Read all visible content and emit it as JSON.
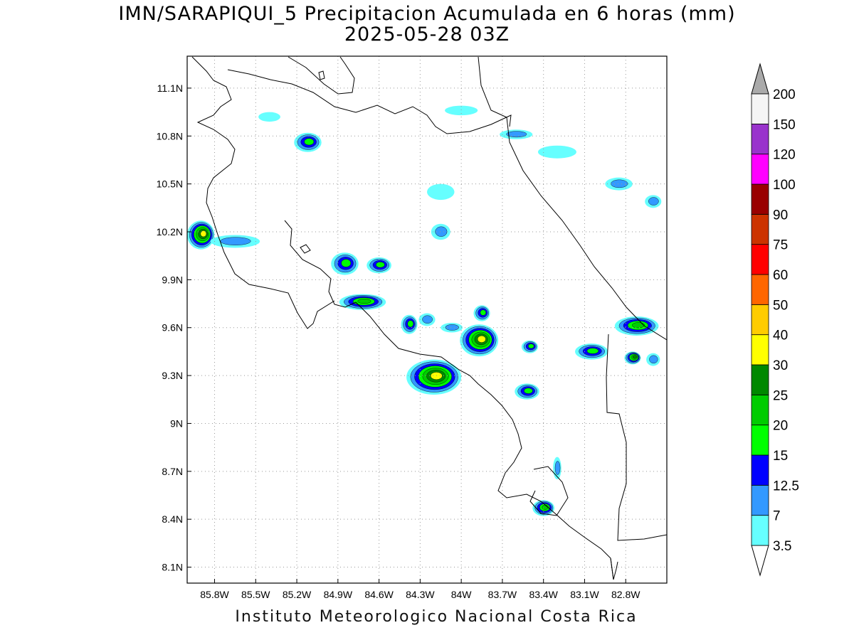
{
  "header": {
    "title": "IMN/SARAPIQUI_5 Precipitacion Acumulada en 6 horas (mm)",
    "subtitle": "2025-05-28 03Z"
  },
  "footer": {
    "credit": "Instituto Meteorologico Nacional Costa Rica"
  },
  "map": {
    "lon_range": [
      -86.0,
      -82.5
    ],
    "lat_range": [
      8.0,
      11.3
    ],
    "lon_ticks": [
      {
        "value": -85.8,
        "label": "85.8W"
      },
      {
        "value": -85.5,
        "label": "85.5W"
      },
      {
        "value": -85.2,
        "label": "85.2W"
      },
      {
        "value": -84.9,
        "label": "84.9W"
      },
      {
        "value": -84.6,
        "label": "84.6W"
      },
      {
        "value": -84.3,
        "label": "84.3W"
      },
      {
        "value": -84.0,
        "label": "84W"
      },
      {
        "value": -83.7,
        "label": "83.7W"
      },
      {
        "value": -83.4,
        "label": "83.4W"
      },
      {
        "value": -83.1,
        "label": "83.1W"
      },
      {
        "value": -82.8,
        "label": "82.8W"
      }
    ],
    "lat_ticks": [
      {
        "value": 11.1,
        "label": "11.1N"
      },
      {
        "value": 10.8,
        "label": "10.8N"
      },
      {
        "value": 10.5,
        "label": "10.5N"
      },
      {
        "value": 10.2,
        "label": "10.2N"
      },
      {
        "value": 9.9,
        "label": "9.9N"
      },
      {
        "value": 9.6,
        "label": "9.6N"
      },
      {
        "value": 9.3,
        "label": "9.3N"
      },
      {
        "value": 9.0,
        "label": "9N"
      },
      {
        "value": 8.7,
        "label": "8.7N"
      },
      {
        "value": 8.4,
        "label": "8.4N"
      },
      {
        "value": 8.1,
        "label": "8.1N"
      }
    ],
    "gridlines": "dotted"
  },
  "legend": {
    "levels": [
      {
        "label": "3.5",
        "color": "#66ffff"
      },
      {
        "label": "7",
        "color": "#3399ff"
      },
      {
        "label": "12.5",
        "color": "#0000ff"
      },
      {
        "label": "15",
        "color": "#00ff00"
      },
      {
        "label": "20",
        "color": "#00cc00"
      },
      {
        "label": "25",
        "color": "#008800"
      },
      {
        "label": "30",
        "color": "#ffff00"
      },
      {
        "label": "40",
        "color": "#ffcc00"
      },
      {
        "label": "50",
        "color": "#ff6600"
      },
      {
        "label": "60",
        "color": "#ff0000"
      },
      {
        "label": "75",
        "color": "#cc3300"
      },
      {
        "label": "90",
        "color": "#990000"
      },
      {
        "label": "100",
        "color": "#ff00ff"
      },
      {
        "label": "120",
        "color": "#9933cc"
      },
      {
        "label": "150",
        "color": "#f5f5f5"
      },
      {
        "label": "200",
        "color": "#aaaaaa"
      }
    ],
    "low_color": "#ffffff",
    "high_color": "#aaaaaa"
  },
  "rain_cells": [
    {
      "lon": -85.9,
      "lat": 10.18,
      "rx": 0.1,
      "ry": 0.09,
      "max_mm": 35
    },
    {
      "lon": -85.65,
      "lat": 10.14,
      "rx": 0.18,
      "ry": 0.04,
      "max_mm": 10
    },
    {
      "lon": -85.12,
      "lat": 10.76,
      "rx": 0.1,
      "ry": 0.06,
      "max_mm": 16
    },
    {
      "lon": -84.85,
      "lat": 10.0,
      "rx": 0.1,
      "ry": 0.07,
      "max_mm": 18
    },
    {
      "lon": -84.6,
      "lat": 9.99,
      "rx": 0.09,
      "ry": 0.05,
      "max_mm": 18
    },
    {
      "lon": -84.72,
      "lat": 9.76,
      "rx": 0.17,
      "ry": 0.05,
      "max_mm": 22
    },
    {
      "lon": -84.2,
      "lat": 9.29,
      "rx": 0.2,
      "ry": 0.11,
      "max_mm": 35
    },
    {
      "lon": -83.87,
      "lat": 9.52,
      "rx": 0.14,
      "ry": 0.1,
      "max_mm": 33
    },
    {
      "lon": -83.52,
      "lat": 9.2,
      "rx": 0.09,
      "ry": 0.05,
      "max_mm": 18
    },
    {
      "lon": -83.4,
      "lat": 8.47,
      "rx": 0.08,
      "ry": 0.05,
      "max_mm": 22
    },
    {
      "lon": -82.72,
      "lat": 9.61,
      "rx": 0.16,
      "ry": 0.06,
      "max_mm": 22
    },
    {
      "lon": -83.05,
      "lat": 9.45,
      "rx": 0.12,
      "ry": 0.05,
      "max_mm": 18
    },
    {
      "lon": -82.75,
      "lat": 9.41,
      "rx": 0.06,
      "ry": 0.04,
      "max_mm": 28
    },
    {
      "lon": -84.15,
      "lat": 10.2,
      "rx": 0.07,
      "ry": 0.05,
      "max_mm": 12
    },
    {
      "lon": -83.85,
      "lat": 9.69,
      "rx": 0.06,
      "ry": 0.05,
      "max_mm": 18
    },
    {
      "lon": -84.38,
      "lat": 9.62,
      "rx": 0.06,
      "ry": 0.06,
      "max_mm": 18
    },
    {
      "lon": -83.6,
      "lat": 10.81,
      "rx": 0.12,
      "ry": 0.03,
      "max_mm": 10
    },
    {
      "lon": -82.85,
      "lat": 10.5,
      "rx": 0.1,
      "ry": 0.04,
      "max_mm": 12
    },
    {
      "lon": -84.0,
      "lat": 10.96,
      "rx": 0.12,
      "ry": 0.03,
      "max_mm": 5
    },
    {
      "lon": -83.3,
      "lat": 10.7,
      "rx": 0.14,
      "ry": 0.04,
      "max_mm": 5
    },
    {
      "lon": -83.5,
      "lat": 9.48,
      "rx": 0.06,
      "ry": 0.04,
      "max_mm": 18
    },
    {
      "lon": -84.07,
      "lat": 9.6,
      "rx": 0.08,
      "ry": 0.03,
      "max_mm": 10
    },
    {
      "lon": -84.25,
      "lat": 9.65,
      "rx": 0.06,
      "ry": 0.04,
      "max_mm": 10
    },
    {
      "lon": -83.3,
      "lat": 8.72,
      "rx": 0.03,
      "ry": 0.07,
      "max_mm": 8
    },
    {
      "lon": -84.15,
      "lat": 10.45,
      "rx": 0.1,
      "ry": 0.05,
      "max_mm": 5
    },
    {
      "lon": -82.6,
      "lat": 10.39,
      "rx": 0.06,
      "ry": 0.04,
      "max_mm": 8
    },
    {
      "lon": -82.6,
      "lat": 9.4,
      "rx": 0.05,
      "ry": 0.04,
      "max_mm": 10
    },
    {
      "lon": -85.4,
      "lat": 10.92,
      "rx": 0.08,
      "ry": 0.03,
      "max_mm": 5
    }
  ]
}
